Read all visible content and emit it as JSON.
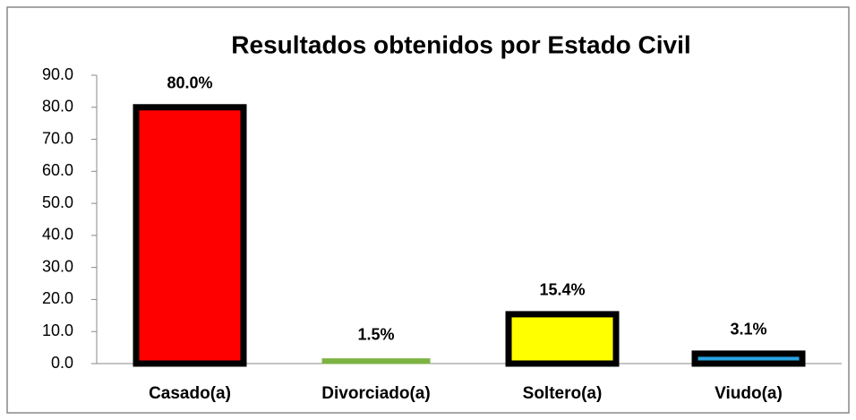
{
  "chart_data": {
    "type": "bar",
    "title": "Resultados obtenidos por Estado Civil",
    "categories": [
      "Casado(a)",
      "Divorciado(a)",
      "Soltero(a)",
      "Viudo(a)"
    ],
    "values": [
      80.0,
      1.5,
      15.4,
      3.1
    ],
    "value_labels": [
      "80.0%",
      "1.5%",
      "15.4%",
      "3.1%"
    ],
    "colors": [
      "#ff0000",
      "#7cb342",
      "#ffff00",
      "#29a3e0"
    ],
    "edge_colors": [
      "#000000",
      "#7cb342",
      "#000000",
      "#000000"
    ],
    "ylim": [
      0,
      90
    ],
    "yticks": [
      {
        "value": 0,
        "label": "0.0"
      },
      {
        "value": 10,
        "label": "10.0"
      },
      {
        "value": 20,
        "label": "20.0"
      },
      {
        "value": 30,
        "label": "30.0"
      },
      {
        "value": 40,
        "label": "40.0"
      },
      {
        "value": 50,
        "label": "50.0"
      },
      {
        "value": 60,
        "label": "60.0"
      },
      {
        "value": 70,
        "label": "70.0"
      },
      {
        "value": 80,
        "label": "80.0"
      },
      {
        "value": 90,
        "label": "90.0"
      }
    ],
    "grid": false
  }
}
